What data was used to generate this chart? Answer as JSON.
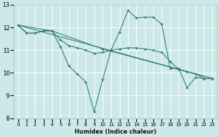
{
  "xlabel": "Humidex (Indice chaleur)",
  "bg_color": "#cce8e8",
  "grid_color": "#ffffff",
  "line_color": "#2e7d72",
  "xlim": [
    -0.5,
    23.5
  ],
  "ylim": [
    8,
    13
  ],
  "xticks": [
    0,
    1,
    2,
    3,
    4,
    5,
    6,
    7,
    8,
    9,
    10,
    11,
    12,
    13,
    14,
    15,
    16,
    17,
    18,
    19,
    20,
    21,
    22,
    23
  ],
  "yticks": [
    8,
    9,
    10,
    11,
    12,
    13
  ],
  "lines": [
    {
      "x": [
        0,
        1,
        2,
        3,
        4,
        5,
        6,
        7,
        8,
        9,
        10,
        11,
        12,
        13,
        14,
        15,
        16,
        17,
        18,
        19,
        20,
        21,
        22,
        23
      ],
      "y": [
        12.1,
        11.75,
        11.75,
        11.85,
        11.85,
        11.15,
        10.3,
        9.95,
        9.6,
        8.3,
        9.7,
        11.0,
        11.8,
        12.75,
        12.42,
        12.45,
        12.45,
        12.15,
        10.2,
        10.2,
        9.35,
        9.8,
        9.75,
        9.75
      ]
    },
    {
      "x": [
        0,
        23
      ],
      "y": [
        12.1,
        9.75
      ]
    },
    {
      "x": [
        0,
        1,
        2,
        3,
        4,
        5,
        6,
        7,
        8,
        9,
        10,
        11,
        12,
        13,
        14,
        15,
        16,
        17,
        18,
        19,
        20,
        21,
        22,
        23
      ],
      "y": [
        12.1,
        11.75,
        11.75,
        11.85,
        11.85,
        11.45,
        11.2,
        11.1,
        11.0,
        10.85,
        10.9,
        11.0,
        11.05,
        11.1,
        11.1,
        11.05,
        11.0,
        10.9,
        10.5,
        10.15,
        10.05,
        9.95,
        9.75,
        9.75
      ]
    },
    {
      "x": [
        0,
        4,
        10,
        19,
        23
      ],
      "y": [
        12.1,
        11.85,
        11.05,
        10.15,
        9.75
      ]
    }
  ]
}
